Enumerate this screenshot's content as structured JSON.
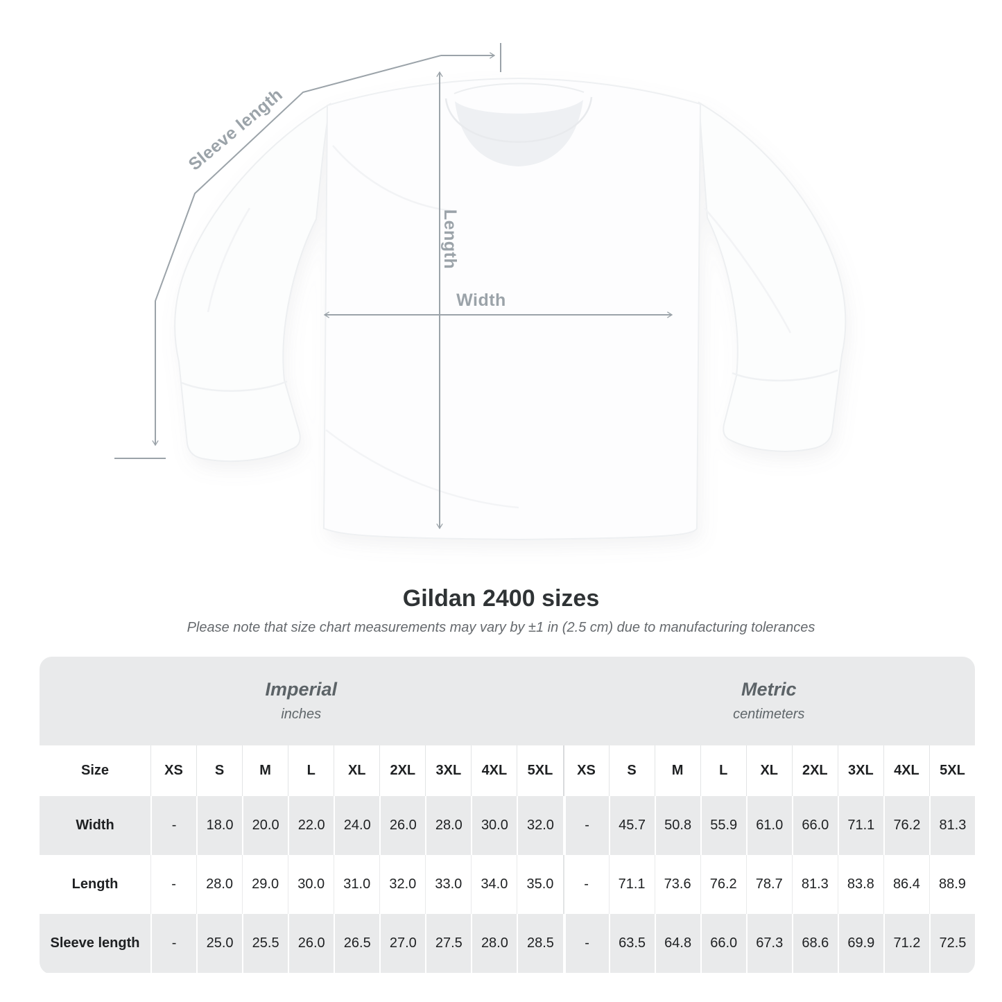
{
  "diagram": {
    "labels": {
      "sleeve_length": "Sleeve length",
      "length": "Length",
      "width": "Width"
    },
    "annotation_color": "#9ba3a9"
  },
  "chart_data": {
    "type": "table",
    "title": "Gildan 2400 sizes",
    "note": "Please note that size chart measurements may vary by ±1 in (2.5 cm) due to manufacturing tolerances",
    "corner_header": "Size",
    "unit_groups": [
      {
        "label": "Imperial",
        "sublabel": "inches"
      },
      {
        "label": "Metric",
        "sublabel": "centimeters"
      }
    ],
    "sizes": [
      "XS",
      "S",
      "M",
      "L",
      "XL",
      "2XL",
      "3XL",
      "4XL",
      "5XL"
    ],
    "rows": [
      {
        "label": "Width",
        "imperial": [
          "-",
          "18.0",
          "20.0",
          "22.0",
          "24.0",
          "26.0",
          "28.0",
          "30.0",
          "32.0"
        ],
        "metric": [
          "-",
          "45.7",
          "50.8",
          "55.9",
          "61.0",
          "66.0",
          "71.1",
          "76.2",
          "81.3"
        ]
      },
      {
        "label": "Length",
        "imperial": [
          "-",
          "28.0",
          "29.0",
          "30.0",
          "31.0",
          "32.0",
          "33.0",
          "34.0",
          "35.0"
        ],
        "metric": [
          "-",
          "71.1",
          "73.6",
          "76.2",
          "78.7",
          "81.3",
          "83.8",
          "86.4",
          "88.9"
        ]
      },
      {
        "label": "Sleeve length",
        "imperial": [
          "-",
          "25.0",
          "25.5",
          "26.0",
          "26.5",
          "27.0",
          "27.5",
          "28.0",
          "28.5"
        ],
        "metric": [
          "-",
          "63.5",
          "64.8",
          "66.0",
          "67.3",
          "68.6",
          "69.9",
          "71.2",
          "72.5"
        ]
      }
    ],
    "colors": {
      "band_gray": "#e9eaeb",
      "zebra_gray": "#e9eaeb",
      "header_text": "#6a7076",
      "value_text": "#1e2022",
      "annotation_gray": "#9ba3a9",
      "title_text": "#2f3335"
    }
  }
}
